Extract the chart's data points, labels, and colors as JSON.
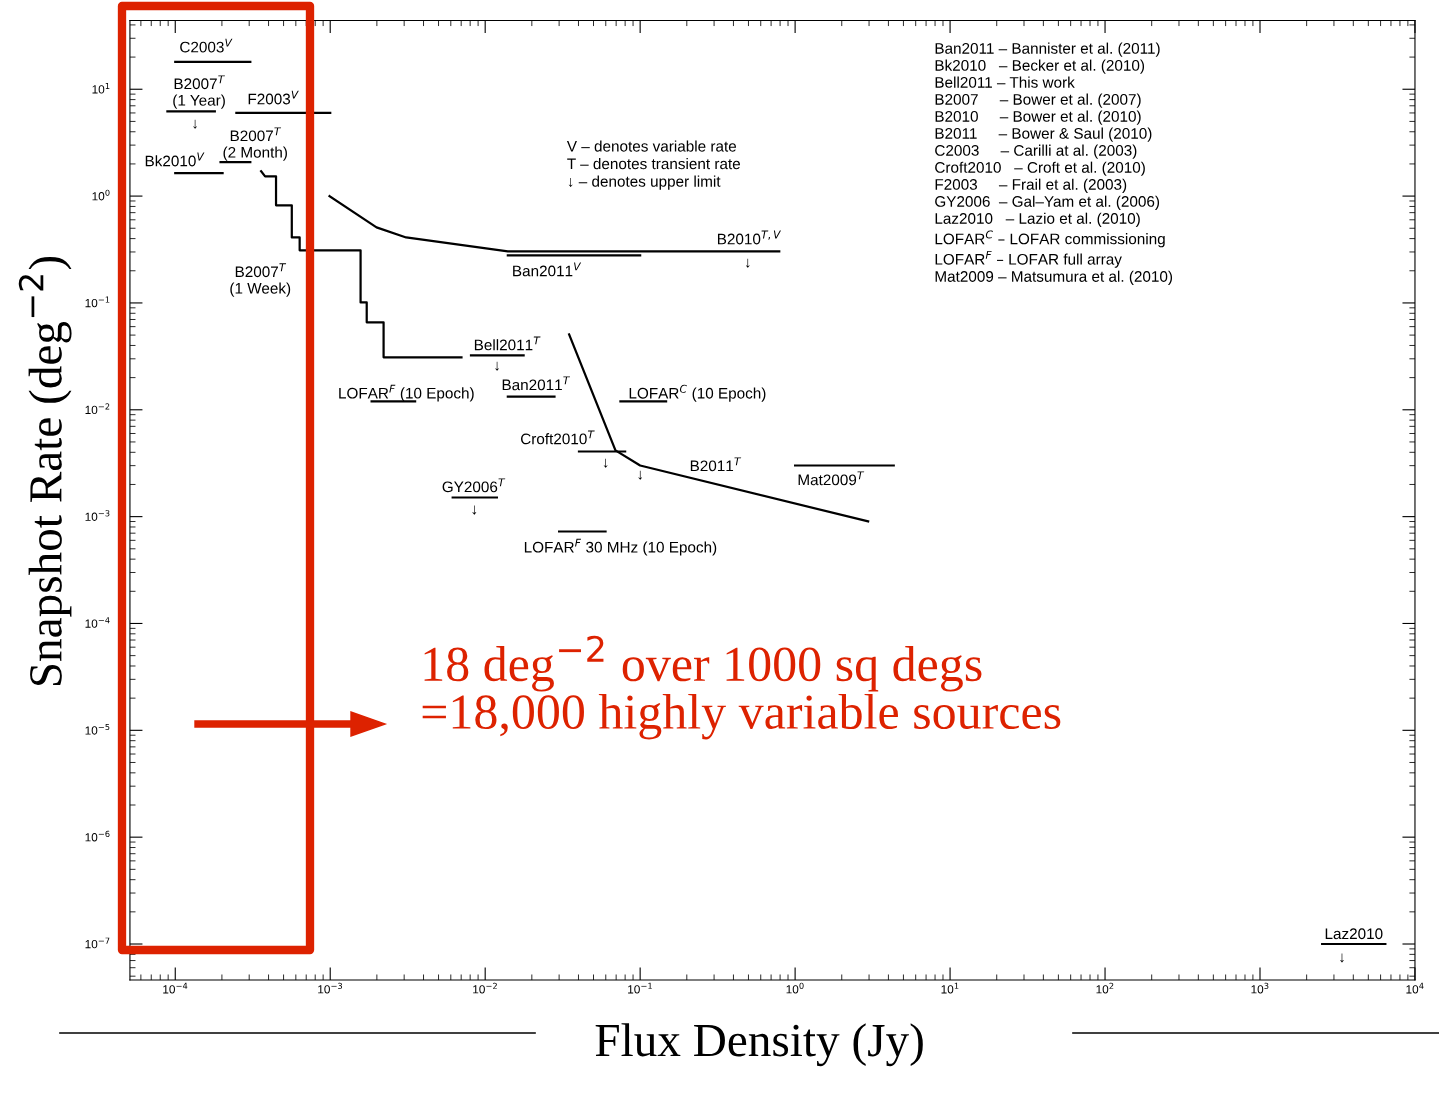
{
  "chart_data": {
    "type": "line",
    "xlabel": "Flux Density (Jy)",
    "ylabel": "Snapshot Rate (deg$^{−2}$)",
    "log": "xy",
    "xlim": [
      5.1e-05,
      10000
    ],
    "ylim": [
      4.6e-08,
      44
    ],
    "xticks": [
      {
        "value": 0.0001,
        "label": "10$^{−4}$"
      },
      {
        "value": 0.001,
        "label": "10$^{−3}$"
      },
      {
        "value": 0.01,
        "label": "10$^{−2}$"
      },
      {
        "value": 0.1,
        "label": "10$^{−1}$"
      },
      {
        "value": 1,
        "label": "10$^{0}$"
      },
      {
        "value": 10,
        "label": "10$^{1}$"
      },
      {
        "value": 100,
        "label": "10$^{2}$"
      },
      {
        "value": 1000,
        "label": "10$^{3}$"
      },
      {
        "value": 10000,
        "label": "10$^{4}$"
      }
    ],
    "yticks": [
      {
        "value": 10,
        "label": "10$^{1}$"
      },
      {
        "value": 1,
        "label": "10$^{0}$"
      },
      {
        "value": 0.1,
        "label": "10$^{−1}$"
      },
      {
        "value": 0.01,
        "label": "10$^{−2}$"
      },
      {
        "value": 0.001,
        "label": "10$^{−3}$"
      },
      {
        "value": 0.0001,
        "label": "10$^{−4}$"
      },
      {
        "value": 1e-05,
        "label": "10$^{−5}$"
      },
      {
        "value": 1e-06,
        "label": "10$^{−6}$"
      },
      {
        "value": 1e-07,
        "label": "10$^{−7}$"
      }
    ],
    "series": [
      {
        "color": "#000000",
        "x": [
          0.0001,
          0.000305
        ],
        "values": [
          18,
          18
        ]
      },
      {
        "color": "#000000",
        "x": [
          8.9e-05,
          0.00018
        ],
        "values": [
          6.2,
          6.2
        ]
      },
      {
        "color": "#000000",
        "x": [
          0.000248,
          0.001
        ],
        "values": [
          6.0,
          6.0
        ]
      },
      {
        "color": "#000000",
        "x": [
          0.0001,
          0.000202
        ],
        "values": [
          1.64,
          1.64
        ]
      },
      {
        "color": "#000000",
        "x": [
          0.000196,
          0.000305
        ],
        "values": [
          2.08,
          2.08
        ]
      },
      {
        "color": "#000000",
        "x": [
          0.000358,
          0.00038,
          0.000447,
          0.000447,
          0.000565,
          0.000565,
          0.000635,
          0.000635,
          0.00157,
          0.00157,
          0.00172,
          0.00172,
          0.00221,
          0.00221,
          0.00703
        ],
        "values": [
          1.71,
          1.53,
          1.53,
          0.82,
          0.82,
          0.41,
          0.41,
          0.311,
          0.311,
          0.101,
          0.101,
          0.0658,
          0.0658,
          0.031,
          0.031
        ]
      },
      {
        "color": "#000000",
        "x": [
          0.00099,
          0.00199,
          0.00309,
          0.014,
          0.79
        ],
        "values": [
          1.0,
          0.51,
          0.41,
          0.304,
          0.304
        ]
      },
      {
        "color": "#000000",
        "x": [
          0.014,
          0.1
        ],
        "values": [
          0.279,
          0.279
        ]
      },
      {
        "color": "#000000",
        "x": [
          0.014,
          0.028
        ],
        "values": [
          0.0133,
          0.0133
        ]
      },
      {
        "color": "#000000",
        "x": [
          0.0081,
          0.0177
        ],
        "values": [
          0.0323,
          0.0323
        ]
      },
      {
        "color": "#000000",
        "x": [
          0.00185,
          0.00353
        ],
        "values": [
          0.012,
          0.012
        ]
      },
      {
        "color": "#000000",
        "x": [
          0.0746,
          0.147
        ],
        "values": [
          0.012,
          0.012
        ]
      },
      {
        "color": "#000000",
        "x": [
          0.0403,
          0.08
        ],
        "values": [
          0.00407,
          0.00407
        ]
      },
      {
        "color": "#000000",
        "x": [
          0.0348,
          0.0693,
          0.1,
          2.96
        ],
        "values": [
          0.0508,
          0.00417,
          0.00301,
          0.000902
        ]
      },
      {
        "color": "#000000",
        "x": [
          1,
          4.33
        ],
        "values": [
          0.00301,
          0.00301
        ]
      },
      {
        "color": "#000000",
        "x": [
          0.00617,
          0.0119
        ],
        "values": [
          0.00151,
          0.00151
        ]
      },
      {
        "color": "#000000",
        "x": [
          0.03,
          0.0598
        ],
        "values": [
          0.000726,
          0.000726
        ]
      },
      {
        "color": "#000000",
        "x": [
          2518,
          6440
        ],
        "values": [
          1e-07,
          1e-07
        ]
      }
    ],
    "annotations": [
      "V – denotes variable rate\nT – denotes transient rate\n↓ – denotes upper limit",
      "Ban2011 – Bannister et al. (2011)\nBk2010   – Becker et al. (2010)\nBell2011 – This work\nB2007     – Bower et al. (2007)\nB2010     – Bower et al. (2010)\nB2011     – Bower & Saul (2010)\nC2003     – Carilli at al. (2003)\nCroft2010   – Croft et al. (2010)\nF2003     – Frail et al. (2003)\nGY2006  – Gal–Yam et al. (2006)\nLaz2010   – Lazio et al. (2010)\nLOFAR$^{C}$ – LOFAR commissioning\nLOFAR$^{F}$ – LOFAR full array\nMat2009 – Matsumura et al. (2010)",
      "18 deg$^{−2}$ over 1000 sq degs\n=18,000 highly variable sources",
      "C2003$^{V}$",
      "B2007$^{T}$\n(1 Year)",
      "F2003$^{V}$",
      "B2007$^{T}$\n(2 Month)",
      "Bk2010$^{V}$",
      "B2007$^{T}$\n(1 Week)",
      "B2010$^{T,V}$",
      "Ban2011$^{V}$",
      "Bell2011$^{T}$",
      "LOFAR$^{F}$ (10 Epoch)",
      "Ban2011$^{T}$",
      "LOFAR$^{C}$ (10 Epoch)",
      "Croft2010$^{T}$",
      "B2011$^{T}$",
      "Mat2009$^{T}$",
      "GY2006$^{T}$",
      "LOFAR$^{F}$ 30 MHz (10 Epoch)",
      "Laz2010",
      "↓",
      "↓",
      "↓",
      "↓",
      "↓",
      "↓",
      "↓"
    ]
  }
}
